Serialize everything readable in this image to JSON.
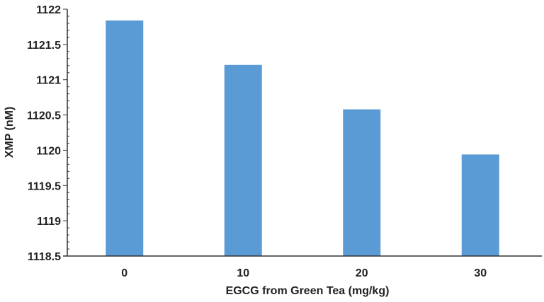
{
  "chart_data": {
    "type": "bar",
    "title": "",
    "xlabel": "EGCG from Green Tea (mg/kg)",
    "ylabel": "XMP (nM)",
    "categories": [
      "0",
      "10",
      "20",
      "30"
    ],
    "values": [
      1121.84,
      1121.21,
      1120.58,
      1119.94
    ],
    "ylim": [
      1118.5,
      1122
    ],
    "yticks": [
      "1118.5",
      "1119",
      "1119.5",
      "1120",
      "1120.5",
      "1121",
      "1121.5",
      "1122"
    ],
    "grid": false,
    "bar_color": "#5b9bd5",
    "axis_color": "#333333"
  }
}
